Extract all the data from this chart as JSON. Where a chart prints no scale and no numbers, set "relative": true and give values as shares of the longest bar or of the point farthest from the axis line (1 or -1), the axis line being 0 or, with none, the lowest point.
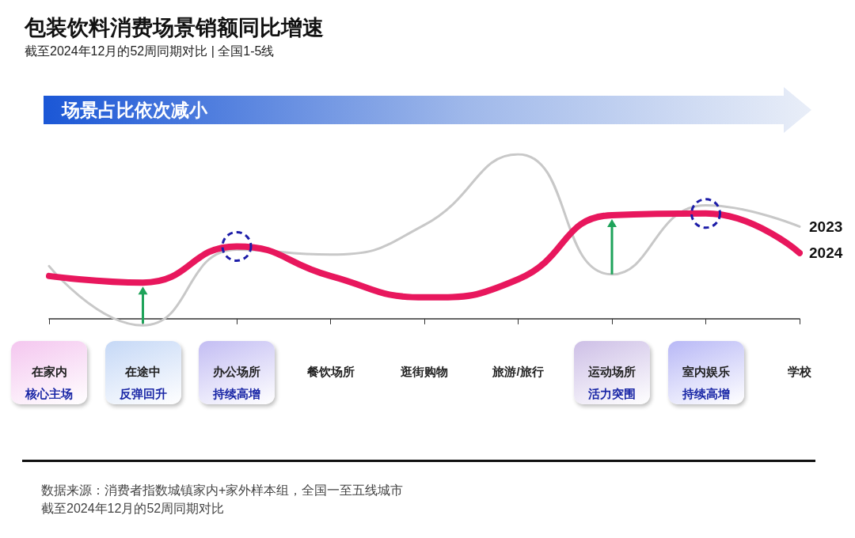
{
  "chart_data": {
    "type": "line",
    "title": "包装饮料消费场景销额同比增速",
    "subtitle": "截至2024年12月的52周同期对比 | 全国1-5线",
    "relative": true,
    "grid": false,
    "legend": false,
    "marker": "none",
    "categories": [
      "在家内",
      "在途中",
      "办公场所",
      "餐饮场所",
      "逛街购物",
      "旅游/旅行",
      "运动场所",
      "室内娱乐",
      "学校"
    ],
    "series": [
      {
        "name": "2023",
        "color": "#c8c8c8",
        "values": [
          0.32,
          -0.04,
          0.42,
          0.39,
          0.57,
          1.0,
          0.27,
          0.69,
          0.56
        ]
      },
      {
        "name": "2024",
        "color": "#e8175d",
        "values": [
          0.26,
          0.22,
          0.44,
          0.26,
          0.13,
          0.24,
          0.63,
          0.64,
          0.4
        ]
      }
    ],
    "annotations": [
      "场景占比依次减小",
      "数据来源：消费者指数城镇家内+家外样本组，全国一至五线城市",
      "截至2024年12月的52周同期对比",
      "核心主场",
      "反弹回升",
      "持续高增",
      "活力突围",
      "持续高增"
    ]
  }
}
